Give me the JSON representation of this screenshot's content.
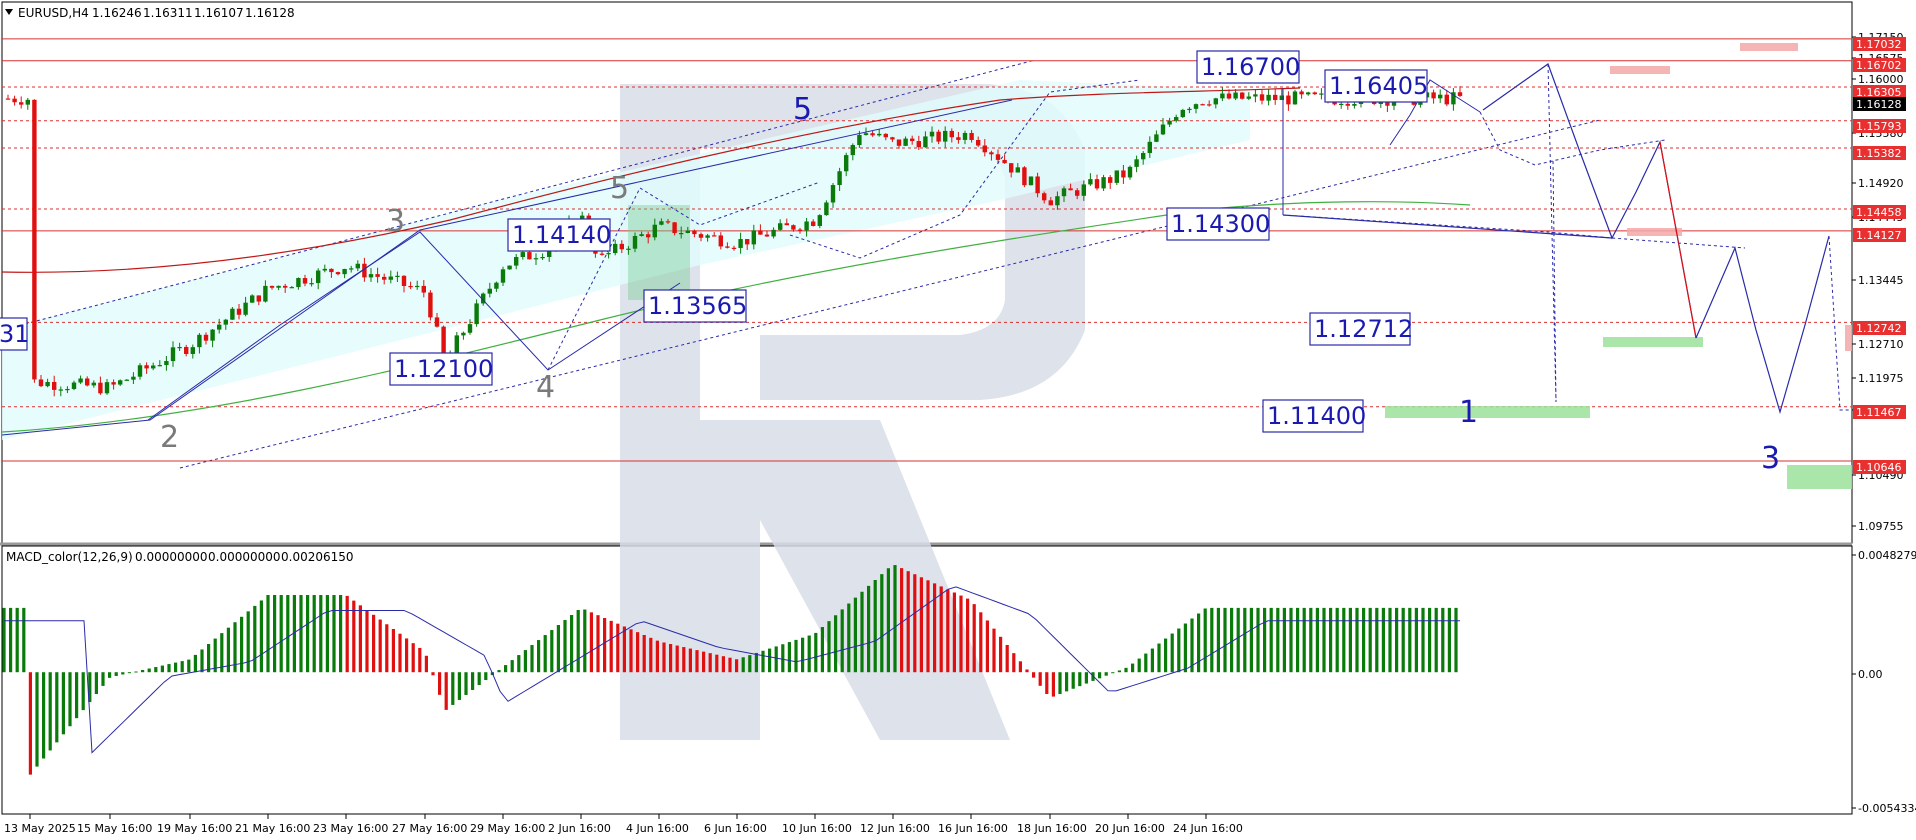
{
  "header": {
    "symbol": "EURUSD,H4",
    "open": "1.16246",
    "high": "1.16311",
    "low": "1.16107",
    "close": "1.16128"
  },
  "macd_header": {
    "name": "MACD_color(12,26,9)",
    "v1": "0.00000000",
    "v2": "0.00000000",
    "v3": "0.00206150"
  },
  "price_axis_ticks": [
    "1.17150",
    "1.16575",
    "1.16000",
    "1.15580",
    "1.14920",
    "1.14445",
    "1.13445",
    "1.12710",
    "1.11975",
    "1.11225",
    "1.10490",
    "1.09755"
  ],
  "macd_axis_ticks": [
    "0.0048279",
    "0.00",
    "-0.0054334"
  ],
  "current_price_tag": "1.16128",
  "level_tags": [
    "1.17032",
    "1.16702",
    "1.16305",
    "1.15793",
    "1.15382",
    "1.14458",
    "1.14127",
    "1.12742",
    "1.11467",
    "1.10646"
  ],
  "date_labels": [
    "13 May 2025",
    "15 May 16:00",
    "19 May 16:00",
    "21 May 16:00",
    "23 May 16:00",
    "27 May 16:00",
    "29 May 16:00",
    "2 Jun 16:00",
    "4 Jun 16:00",
    "6 Jun 16:00",
    "10 Jun 16:00",
    "12 Jun 16:00",
    "16 Jun 16:00",
    "18 Jun 16:00",
    "20 Jun 16:00",
    "24 Jun 16:00"
  ],
  "annotations": {
    "box_labels": [
      "1.16700",
      "1.16405",
      "1.14140",
      "1.13565",
      "1.12100",
      "1.14300",
      "1.12712",
      "1.11400",
      "31"
    ],
    "wave_labels_gray": [
      "2",
      "3",
      "4",
      "5"
    ],
    "wave_labels_blue": [
      "5",
      "1",
      "3"
    ]
  },
  "colors": {
    "bull": "#0a7a0a",
    "bear": "#e01010",
    "level_line": "#d83030",
    "level_tag_bg": "#e83030",
    "current_tag_bg": "#000000",
    "wave_blue": "#2a2aa8",
    "channel_fill": "#e2fbfd",
    "ma_red": "#c01818",
    "ma_green": "#40b040",
    "signal_line": "#2a2aa8",
    "watermark": "#d7dde8"
  },
  "chart_data": {
    "type": "candlestick",
    "symbol": "EURUSD",
    "timeframe": "H4",
    "y_range": [
      1.0945,
      1.1756
    ],
    "close_path": [
      {
        "t": "13 May 2025",
        "c": 1.1185
      },
      {
        "t": "15 May 16:00",
        "c": 1.1175
      },
      {
        "t": "19 May 16:00",
        "c": 1.124
      },
      {
        "t": "21 May 16:00",
        "c": 1.1325
      },
      {
        "t": "23 May 16:00",
        "c": 1.136
      },
      {
        "t": "27 May 16:00",
        "c": 1.132
      },
      {
        "t": "28 May 12:00",
        "c": 1.1215
      },
      {
        "t": "29 May 16:00",
        "c": 1.136
      },
      {
        "t": "30 May 16:00",
        "c": 1.1385
      },
      {
        "t": "2 Jun 16:00",
        "c": 1.1435
      },
      {
        "t": "3 Jun 12:00",
        "c": 1.137
      },
      {
        "t": "4 Jun 16:00",
        "c": 1.142
      },
      {
        "t": "6 Jun 16:00",
        "c": 1.1395
      },
      {
        "t": "10 Jun 16:00",
        "c": 1.143
      },
      {
        "t": "11 Jun 16:00",
        "c": 1.1565
      },
      {
        "t": "12 Jun 16:00",
        "c": 1.1545
      },
      {
        "t": "16 Jun 16:00",
        "c": 1.156
      },
      {
        "t": "18 Jun 16:00",
        "c": 1.146
      },
      {
        "t": "20 Jun 16:00",
        "c": 1.15
      },
      {
        "t": "23 Jun 16:00",
        "c": 1.16
      },
      {
        "t": "24 Jun 16:00",
        "c": 1.1613
      }
    ],
    "levels": [
      1.17032,
      1.16702,
      1.16305,
      1.15793,
      1.15382,
      1.14458,
      1.14127,
      1.12742,
      1.11467,
      1.10646
    ],
    "macd": {
      "name": "MACD_color(12,26,9)",
      "y_range": [
        -0.0054334,
        0.0048279
      ],
      "histogram_profile": [
        {
          "t": "13 May 2025",
          "v": -0.004
        },
        {
          "t": "15 May 16:00",
          "v": -0.0002
        },
        {
          "t": "19 May 16:00",
          "v": 0.0005
        },
        {
          "t": "21 May 16:00",
          "v": 0.003
        },
        {
          "t": "23 May 16:00",
          "v": 0.003
        },
        {
          "t": "27 May 16:00",
          "v": 0.0008
        },
        {
          "t": "28 May 12:00",
          "v": -0.0015
        },
        {
          "t": "29 May 16:00",
          "v": 0.0002
        },
        {
          "t": "2 Jun 16:00",
          "v": 0.0025
        },
        {
          "t": "4 Jun 16:00",
          "v": 0.0012
        },
        {
          "t": "6 Jun 16:00",
          "v": 0.0005
        },
        {
          "t": "10 Jun 16:00",
          "v": 0.0015
        },
        {
          "t": "12 Jun 16:00",
          "v": 0.0042
        },
        {
          "t": "16 Jun 16:00",
          "v": 0.0028
        },
        {
          "t": "18 Jun 16:00",
          "v": -0.001
        },
        {
          "t": "20 Jun 16:00",
          "v": 0.0002
        },
        {
          "t": "24 Jun 16:00",
          "v": 0.0025
        }
      ]
    }
  }
}
